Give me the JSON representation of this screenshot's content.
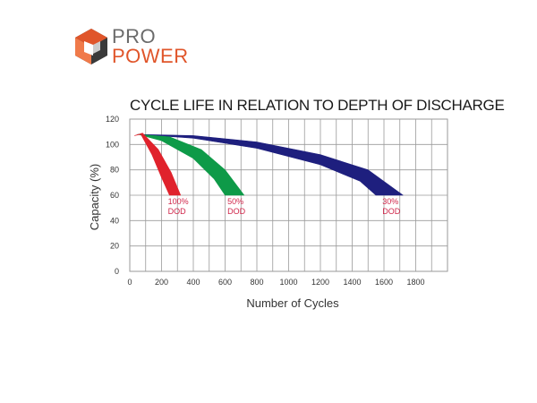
{
  "brand": {
    "name_line1": "PRO",
    "name_line2": "POWER",
    "colors": {
      "grey": "#5a5a5a",
      "orange": "#e0552a",
      "dark": "#3a3a3a"
    },
    "icon": "hexagon-cube-logo-icon"
  },
  "chart_data": {
    "type": "area",
    "title": "CYCLE LIFE IN RELATION TO DEPTH OF DISCHARGE",
    "xlabel": "Number of Cycles",
    "ylabel": "Capacity (%)",
    "xlim": [
      0,
      2000
    ],
    "ylim": [
      0,
      120
    ],
    "xticks": [
      "0",
      "200",
      "400",
      "600",
      "800",
      "1000",
      "1200",
      "1400",
      "1600",
      "1800"
    ],
    "yticks": [
      "0",
      "20",
      "40",
      "60",
      "80",
      "100",
      "120"
    ],
    "grid": true,
    "series": [
      {
        "name": "30% DOD",
        "label_lines": [
          "30%",
          "DOD"
        ],
        "color": "#1e1f7e",
        "label_color": "#d0264a",
        "upper": [
          [
            50,
            108
          ],
          [
            400,
            107
          ],
          [
            800,
            102
          ],
          [
            1200,
            92
          ],
          [
            1500,
            80
          ],
          [
            1720,
            60
          ]
        ],
        "lower": [
          [
            50,
            108
          ],
          [
            400,
            105
          ],
          [
            800,
            97
          ],
          [
            1200,
            84
          ],
          [
            1450,
            71
          ],
          [
            1550,
            60
          ]
        ]
      },
      {
        "name": "50% DOD",
        "label_lines": [
          "50%",
          "DOD"
        ],
        "color": "#0e9a48",
        "label_color": "#d0264a",
        "upper": [
          [
            50,
            108
          ],
          [
            250,
            106
          ],
          [
            450,
            96
          ],
          [
            600,
            80
          ],
          [
            720,
            60
          ]
        ],
        "lower": [
          [
            50,
            108
          ],
          [
            200,
            103
          ],
          [
            400,
            89
          ],
          [
            530,
            73
          ],
          [
            600,
            60
          ]
        ]
      },
      {
        "name": "100% DOD",
        "label_lines": [
          "100%",
          "DOD"
        ],
        "color": "#e0222c",
        "label_color": "#d0264a",
        "upper": [
          [
            30,
            107
          ],
          [
            80,
            109
          ],
          [
            180,
            96
          ],
          [
            260,
            78
          ],
          [
            320,
            60
          ]
        ],
        "lower": [
          [
            30,
            107
          ],
          [
            70,
            108
          ],
          [
            140,
            92
          ],
          [
            200,
            74
          ],
          [
            250,
            60
          ]
        ]
      }
    ]
  }
}
